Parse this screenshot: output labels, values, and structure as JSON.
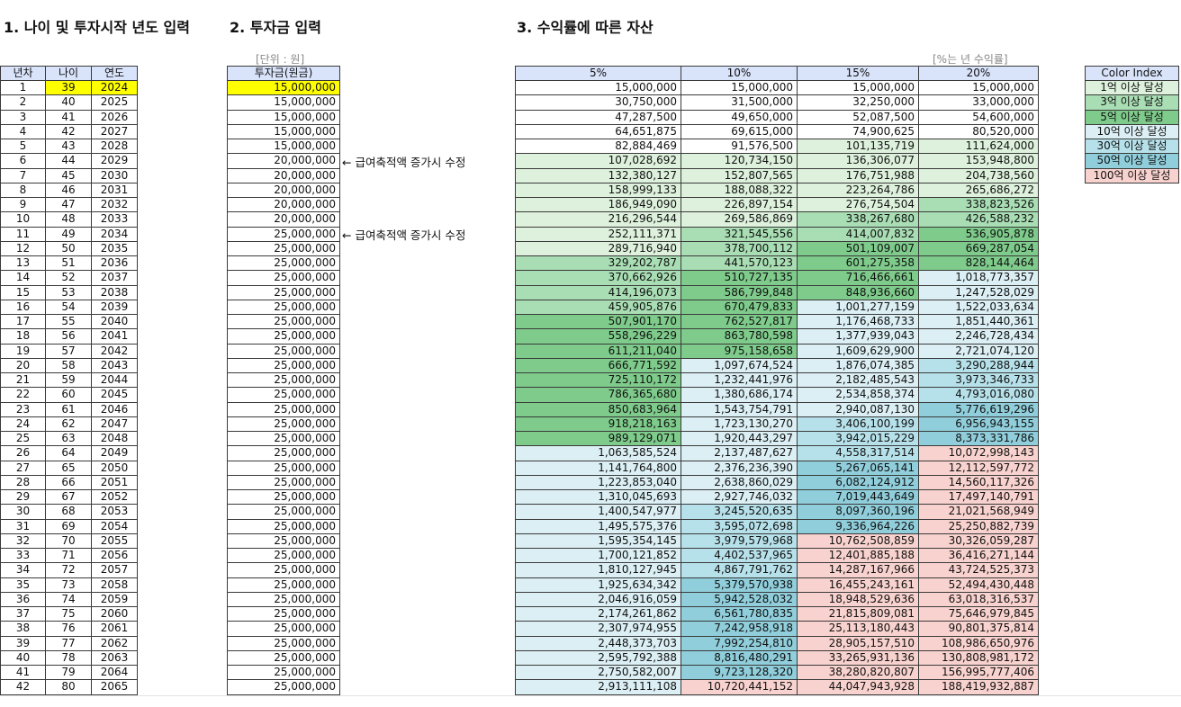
{
  "header": {
    "title1": "1. 나이 및 투자시작 년도 입력",
    "title2": "2. 투자금 입력",
    "title3": "3. 수익률에 따른 자산"
  },
  "unit_note": "[단위 : 원]",
  "rate_note": "[%는 년 수익률]",
  "age_table": {
    "columns": [
      "년차",
      "나이",
      "연도"
    ],
    "highlight": "#ffff00",
    "rows": [
      [
        1,
        39,
        2024
      ],
      [
        2,
        40,
        2025
      ],
      [
        3,
        41,
        2026
      ],
      [
        4,
        42,
        2027
      ],
      [
        5,
        43,
        2028
      ],
      [
        6,
        44,
        2029
      ],
      [
        7,
        45,
        2030
      ],
      [
        8,
        46,
        2031
      ],
      [
        9,
        47,
        2032
      ],
      [
        10,
        48,
        2033
      ],
      [
        11,
        49,
        2034
      ],
      [
        12,
        50,
        2035
      ],
      [
        13,
        51,
        2036
      ],
      [
        14,
        52,
        2037
      ],
      [
        15,
        53,
        2038
      ],
      [
        16,
        54,
        2039
      ],
      [
        17,
        55,
        2040
      ],
      [
        18,
        56,
        2041
      ],
      [
        19,
        57,
        2042
      ],
      [
        20,
        58,
        2043
      ],
      [
        21,
        59,
        2044
      ],
      [
        22,
        60,
        2045
      ],
      [
        23,
        61,
        2046
      ],
      [
        24,
        62,
        2047
      ],
      [
        25,
        63,
        2048
      ],
      [
        26,
        64,
        2049
      ],
      [
        27,
        65,
        2050
      ],
      [
        28,
        66,
        2051
      ],
      [
        29,
        67,
        2052
      ],
      [
        30,
        68,
        2053
      ],
      [
        31,
        69,
        2054
      ],
      [
        32,
        70,
        2055
      ],
      [
        33,
        71,
        2056
      ],
      [
        34,
        72,
        2057
      ],
      [
        35,
        73,
        2058
      ],
      [
        36,
        74,
        2059
      ],
      [
        37,
        75,
        2060
      ],
      [
        38,
        76,
        2061
      ],
      [
        39,
        77,
        2062
      ],
      [
        40,
        78,
        2063
      ],
      [
        41,
        79,
        2064
      ],
      [
        42,
        80,
        2065
      ]
    ]
  },
  "invest_table": {
    "column": "투자금(원금)",
    "rows": [
      "15,000,000",
      "15,000,000",
      "15,000,000",
      "15,000,000",
      "15,000,000",
      "20,000,000",
      "20,000,000",
      "20,000,000",
      "20,000,000",
      "20,000,000",
      "25,000,000",
      "25,000,000",
      "25,000,000",
      "25,000,000",
      "25,000,000",
      "25,000,000",
      "25,000,000",
      "25,000,000",
      "25,000,000",
      "25,000,000",
      "25,000,000",
      "25,000,000",
      "25,000,000",
      "25,000,000",
      "25,000,000",
      "25,000,000",
      "25,000,000",
      "25,000,000",
      "25,000,000",
      "25,000,000",
      "25,000,000",
      "25,000,000",
      "25,000,000",
      "25,000,000",
      "25,000,000",
      "25,000,000",
      "25,000,000",
      "25,000,000",
      "25,000,000",
      "25,000,000",
      "25,000,000",
      "25,000,000"
    ]
  },
  "annotations": [
    {
      "row": 6,
      "text": "← 급여축적액 증가시 수정"
    },
    {
      "row": 11,
      "text": "← 급여축적액 증가시 수정"
    }
  ],
  "asset_table": {
    "columns": [
      "5%",
      "10%",
      "15%",
      "20%"
    ],
    "rows": [
      [
        "15,000,000",
        "15,000,000",
        "15,000,000",
        "15,000,000"
      ],
      [
        "30,750,000",
        "31,500,000",
        "32,250,000",
        "33,000,000"
      ],
      [
        "47,287,500",
        "49,650,000",
        "52,087,500",
        "54,600,000"
      ],
      [
        "64,651,875",
        "69,615,000",
        "74,900,625",
        "80,520,000"
      ],
      [
        "82,884,469",
        "91,576,500",
        "101,135,719",
        "111,624,000"
      ],
      [
        "107,028,692",
        "120,734,150",
        "136,306,077",
        "153,948,800"
      ],
      [
        "132,380,127",
        "152,807,565",
        "176,751,988",
        "204,738,560"
      ],
      [
        "158,999,133",
        "188,088,322",
        "223,264,786",
        "265,686,272"
      ],
      [
        "186,949,090",
        "226,897,154",
        "276,754,504",
        "338,823,526"
      ],
      [
        "216,296,544",
        "269,586,869",
        "338,267,680",
        "426,588,232"
      ],
      [
        "252,111,371",
        "321,545,556",
        "414,007,832",
        "536,905,878"
      ],
      [
        "289,716,940",
        "378,700,112",
        "501,109,007",
        "669,287,054"
      ],
      [
        "329,202,787",
        "441,570,123",
        "601,275,358",
        "828,144,464"
      ],
      [
        "370,662,926",
        "510,727,135",
        "716,466,661",
        "1,018,773,357"
      ],
      [
        "414,196,073",
        "586,799,848",
        "848,936,660",
        "1,247,528,029"
      ],
      [
        "459,905,876",
        "670,479,833",
        "1,001,277,159",
        "1,522,033,634"
      ],
      [
        "507,901,170",
        "762,527,817",
        "1,176,468,733",
        "1,851,440,361"
      ],
      [
        "558,296,229",
        "863,780,598",
        "1,377,939,043",
        "2,246,728,434"
      ],
      [
        "611,211,040",
        "975,158,658",
        "1,609,629,900",
        "2,721,074,120"
      ],
      [
        "666,771,592",
        "1,097,674,524",
        "1,876,074,385",
        "3,290,288,944"
      ],
      [
        "725,110,172",
        "1,232,441,976",
        "2,182,485,543",
        "3,973,346,733"
      ],
      [
        "786,365,680",
        "1,380,686,174",
        "2,534,858,374",
        "4,793,016,080"
      ],
      [
        "850,683,964",
        "1,543,754,791",
        "2,940,087,130",
        "5,776,619,296"
      ],
      [
        "918,218,163",
        "1,723,130,270",
        "3,406,100,199",
        "6,956,943,155"
      ],
      [
        "989,129,071",
        "1,920,443,297",
        "3,942,015,229",
        "8,373,331,786"
      ],
      [
        "1,063,585,524",
        "2,137,487,627",
        "4,558,317,514",
        "10,072,998,143"
      ],
      [
        "1,141,764,800",
        "2,376,236,390",
        "5,267,065,141",
        "12,112,597,772"
      ],
      [
        "1,223,853,040",
        "2,638,860,029",
        "6,082,124,912",
        "14,560,117,326"
      ],
      [
        "1,310,045,693",
        "2,927,746,032",
        "7,019,443,649",
        "17,497,140,791"
      ],
      [
        "1,400,547,977",
        "3,245,520,635",
        "8,097,360,196",
        "21,021,568,949"
      ],
      [
        "1,495,575,376",
        "3,595,072,698",
        "9,336,964,226",
        "25,250,882,739"
      ],
      [
        "1,595,354,145",
        "3,979,579,968",
        "10,762,508,859",
        "30,326,059,287"
      ],
      [
        "1,700,121,852",
        "4,402,537,965",
        "12,401,885,188",
        "36,416,271,144"
      ],
      [
        "1,810,127,945",
        "4,867,791,762",
        "14,287,167,966",
        "43,724,525,373"
      ],
      [
        "1,925,634,342",
        "5,379,570,938",
        "16,455,243,161",
        "52,494,430,448"
      ],
      [
        "2,046,916,059",
        "5,942,528,032",
        "18,948,529,636",
        "63,018,316,537"
      ],
      [
        "2,174,261,862",
        "6,561,780,835",
        "21,815,809,081",
        "75,646,979,845"
      ],
      [
        "2,307,974,955",
        "7,242,958,918",
        "25,113,180,443",
        "90,801,375,814"
      ],
      [
        "2,448,373,703",
        "7,992,254,810",
        "28,905,157,510",
        "108,986,650,976"
      ],
      [
        "2,595,792,388",
        "8,816,480,291",
        "33,265,931,136",
        "130,808,981,172"
      ],
      [
        "2,750,582,007",
        "9,723,128,320",
        "38,280,820,807",
        "156,995,777,406"
      ],
      [
        "2,913,111,108",
        "10,720,441,152",
        "44,047,943,928",
        "188,419,932,887"
      ]
    ]
  },
  "color_index": {
    "title": "Color Index",
    "items": [
      {
        "label": "1억 이상 달성",
        "color": "#ddf1dc",
        "threshold": 100000000
      },
      {
        "label": "3억 이상 달성",
        "color": "#a9deb4",
        "threshold": 300000000
      },
      {
        "label": "5억 이상 달성",
        "color": "#7ecb8b",
        "threshold": 500000000
      },
      {
        "label": "10억 이상 달성",
        "color": "#dbeff4",
        "threshold": 1000000000
      },
      {
        "label": "30억 이상 달성",
        "color": "#b7e1ea",
        "threshold": 3000000000
      },
      {
        "label": "50억 이상 달성",
        "color": "#90cedb",
        "threshold": 5000000000
      },
      {
        "label": "100억 이상 달성",
        "color": "#f8d2ce",
        "threshold": 10000000000
      }
    ]
  }
}
